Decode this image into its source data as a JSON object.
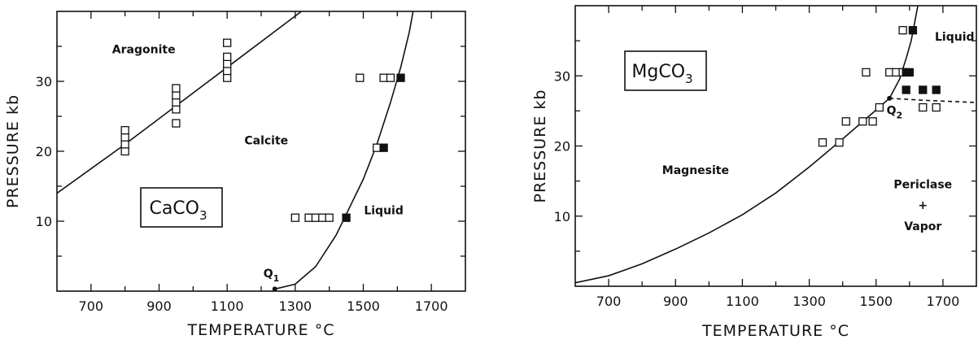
{
  "chart_data": [
    {
      "type": "scatter",
      "title": "",
      "box_label": {
        "main": "CaCO",
        "sub": "3"
      },
      "xlabel": "TEMPERATURE °C",
      "ylabel": "PRESSURE kb",
      "xlim": [
        600,
        1800
      ],
      "ylim": [
        0,
        40
      ],
      "xticks": [
        700,
        900,
        1100,
        1300,
        1500,
        1700
      ],
      "xticklabels": [
        "700",
        "900",
        "1100",
        "1300",
        "1500",
        "1700"
      ],
      "yticks": [
        10,
        20,
        30
      ],
      "yticklabels": [
        "10",
        "20",
        "30"
      ],
      "grid": false,
      "regions": [
        {
          "label": "Aragonite",
          "x": 855,
          "y": 34
        },
        {
          "label": "Calcite",
          "x": 1215,
          "y": 21
        },
        {
          "label": "Liquid",
          "x": 1560,
          "y": 11
        }
      ],
      "point_label": {
        "main": "Q",
        "sub": "1",
        "x": 1230,
        "y": 2.0
      },
      "point_marker": {
        "x": 1240,
        "y": 0.3
      },
      "boundaries": [
        {
          "name": "aragonite-calcite",
          "style": "solid",
          "x": [
            600,
            800,
            950,
            1100,
            1250,
            1400
          ],
          "y": [
            14,
            21,
            26.5,
            32,
            37.5,
            43
          ]
        },
        {
          "name": "calcite-liquid",
          "style": "solid",
          "x": [
            1240,
            1300,
            1360,
            1420,
            1460,
            1500,
            1540,
            1580,
            1610,
            1635,
            1650
          ],
          "y": [
            0.3,
            1.0,
            3.5,
            8,
            12,
            16,
            21,
            27,
            32,
            37,
            41
          ]
        }
      ],
      "series": [
        {
          "name": "",
          "marker": "open-square",
          "x": [
            800,
            800,
            800,
            800,
            950,
            950,
            950,
            950,
            950,
            1100,
            1100,
            1100,
            1100,
            1100,
            1300,
            1340,
            1360,
            1380,
            1400,
            1490,
            1560,
            1580,
            1540
          ],
          "y": [
            20,
            21,
            22,
            23,
            24,
            26,
            27,
            28,
            29,
            30.5,
            31.5,
            32.5,
            33.5,
            35.5,
            10.5,
            10.5,
            10.5,
            10.5,
            10.5,
            30.5,
            30.5,
            30.5,
            20.5
          ]
        },
        {
          "name": "",
          "marker": "filled-square",
          "x": [
            1450,
            1560,
            1610
          ],
          "y": [
            10.5,
            20.5,
            30.5
          ]
        }
      ]
    },
    {
      "type": "scatter",
      "title": "",
      "box_label": {
        "main": "MgCO",
        "sub": "3"
      },
      "xlabel": "TEMPERATURE °C",
      "ylabel": "PRESSURE kb",
      "xlim": [
        600,
        1800
      ],
      "ylim": [
        0,
        40
      ],
      "xticks": [
        700,
        900,
        1100,
        1300,
        1500,
        1700
      ],
      "xticklabels": [
        "700",
        "900",
        "1100",
        "1300",
        "1500",
        "1700"
      ],
      "yticks": [
        10,
        20,
        30
      ],
      "yticklabels": [
        "10",
        "20",
        "30"
      ],
      "grid": false,
      "regions": [
        {
          "label": "Liquid",
          "x": 1735,
          "y": 35
        },
        {
          "label": "Magnesite",
          "x": 960,
          "y": 16
        },
        {
          "label": "Periclase",
          "x": 1640,
          "y": 14
        },
        {
          "label": "+",
          "x": 1640,
          "y": 11
        },
        {
          "label": "Vapor",
          "x": 1640,
          "y": 8
        }
      ],
      "point_label": {
        "main": "Q",
        "sub": "2",
        "x": 1555,
        "y": 24.5
      },
      "point_marker": {
        "x": 1540,
        "y": 26.8
      },
      "boundaries": [
        {
          "name": "magnesite-periclase",
          "style": "solid",
          "x": [
            600,
            700,
            800,
            900,
            1000,
            1100,
            1200,
            1300,
            1400,
            1480,
            1540
          ],
          "y": [
            0.5,
            1.5,
            3.2,
            5.3,
            7.6,
            10.2,
            13.3,
            17.0,
            21.0,
            24.3,
            26.8
          ]
        },
        {
          "name": "magnesite-liquid",
          "style": "solid",
          "x": [
            1540,
            1570,
            1590,
            1605,
            1615,
            1625,
            1635
          ],
          "y": [
            26.8,
            29.5,
            32.5,
            35,
            37.5,
            40,
            43
          ]
        },
        {
          "name": "periclase-liquid",
          "style": "dashed",
          "x": [
            1540,
            1650,
            1750,
            1800
          ],
          "y": [
            26.8,
            26.5,
            26.3,
            26.2
          ]
        }
      ],
      "series": [
        {
          "name": "",
          "marker": "open-square",
          "x": [
            1340,
            1390,
            1410,
            1460,
            1490,
            1510,
            1470,
            1540,
            1560,
            1580,
            1580,
            1640,
            1680
          ],
          "y": [
            20.5,
            20.5,
            23.5,
            23.5,
            23.5,
            25.5,
            30.5,
            30.5,
            30.5,
            30.5,
            36.5,
            25.5,
            25.5
          ]
        },
        {
          "name": "",
          "marker": "filled-square",
          "x": [
            1590,
            1600,
            1610,
            1590,
            1640,
            1680
          ],
          "y": [
            30.5,
            30.5,
            36.5,
            28,
            28,
            28
          ]
        }
      ]
    }
  ]
}
